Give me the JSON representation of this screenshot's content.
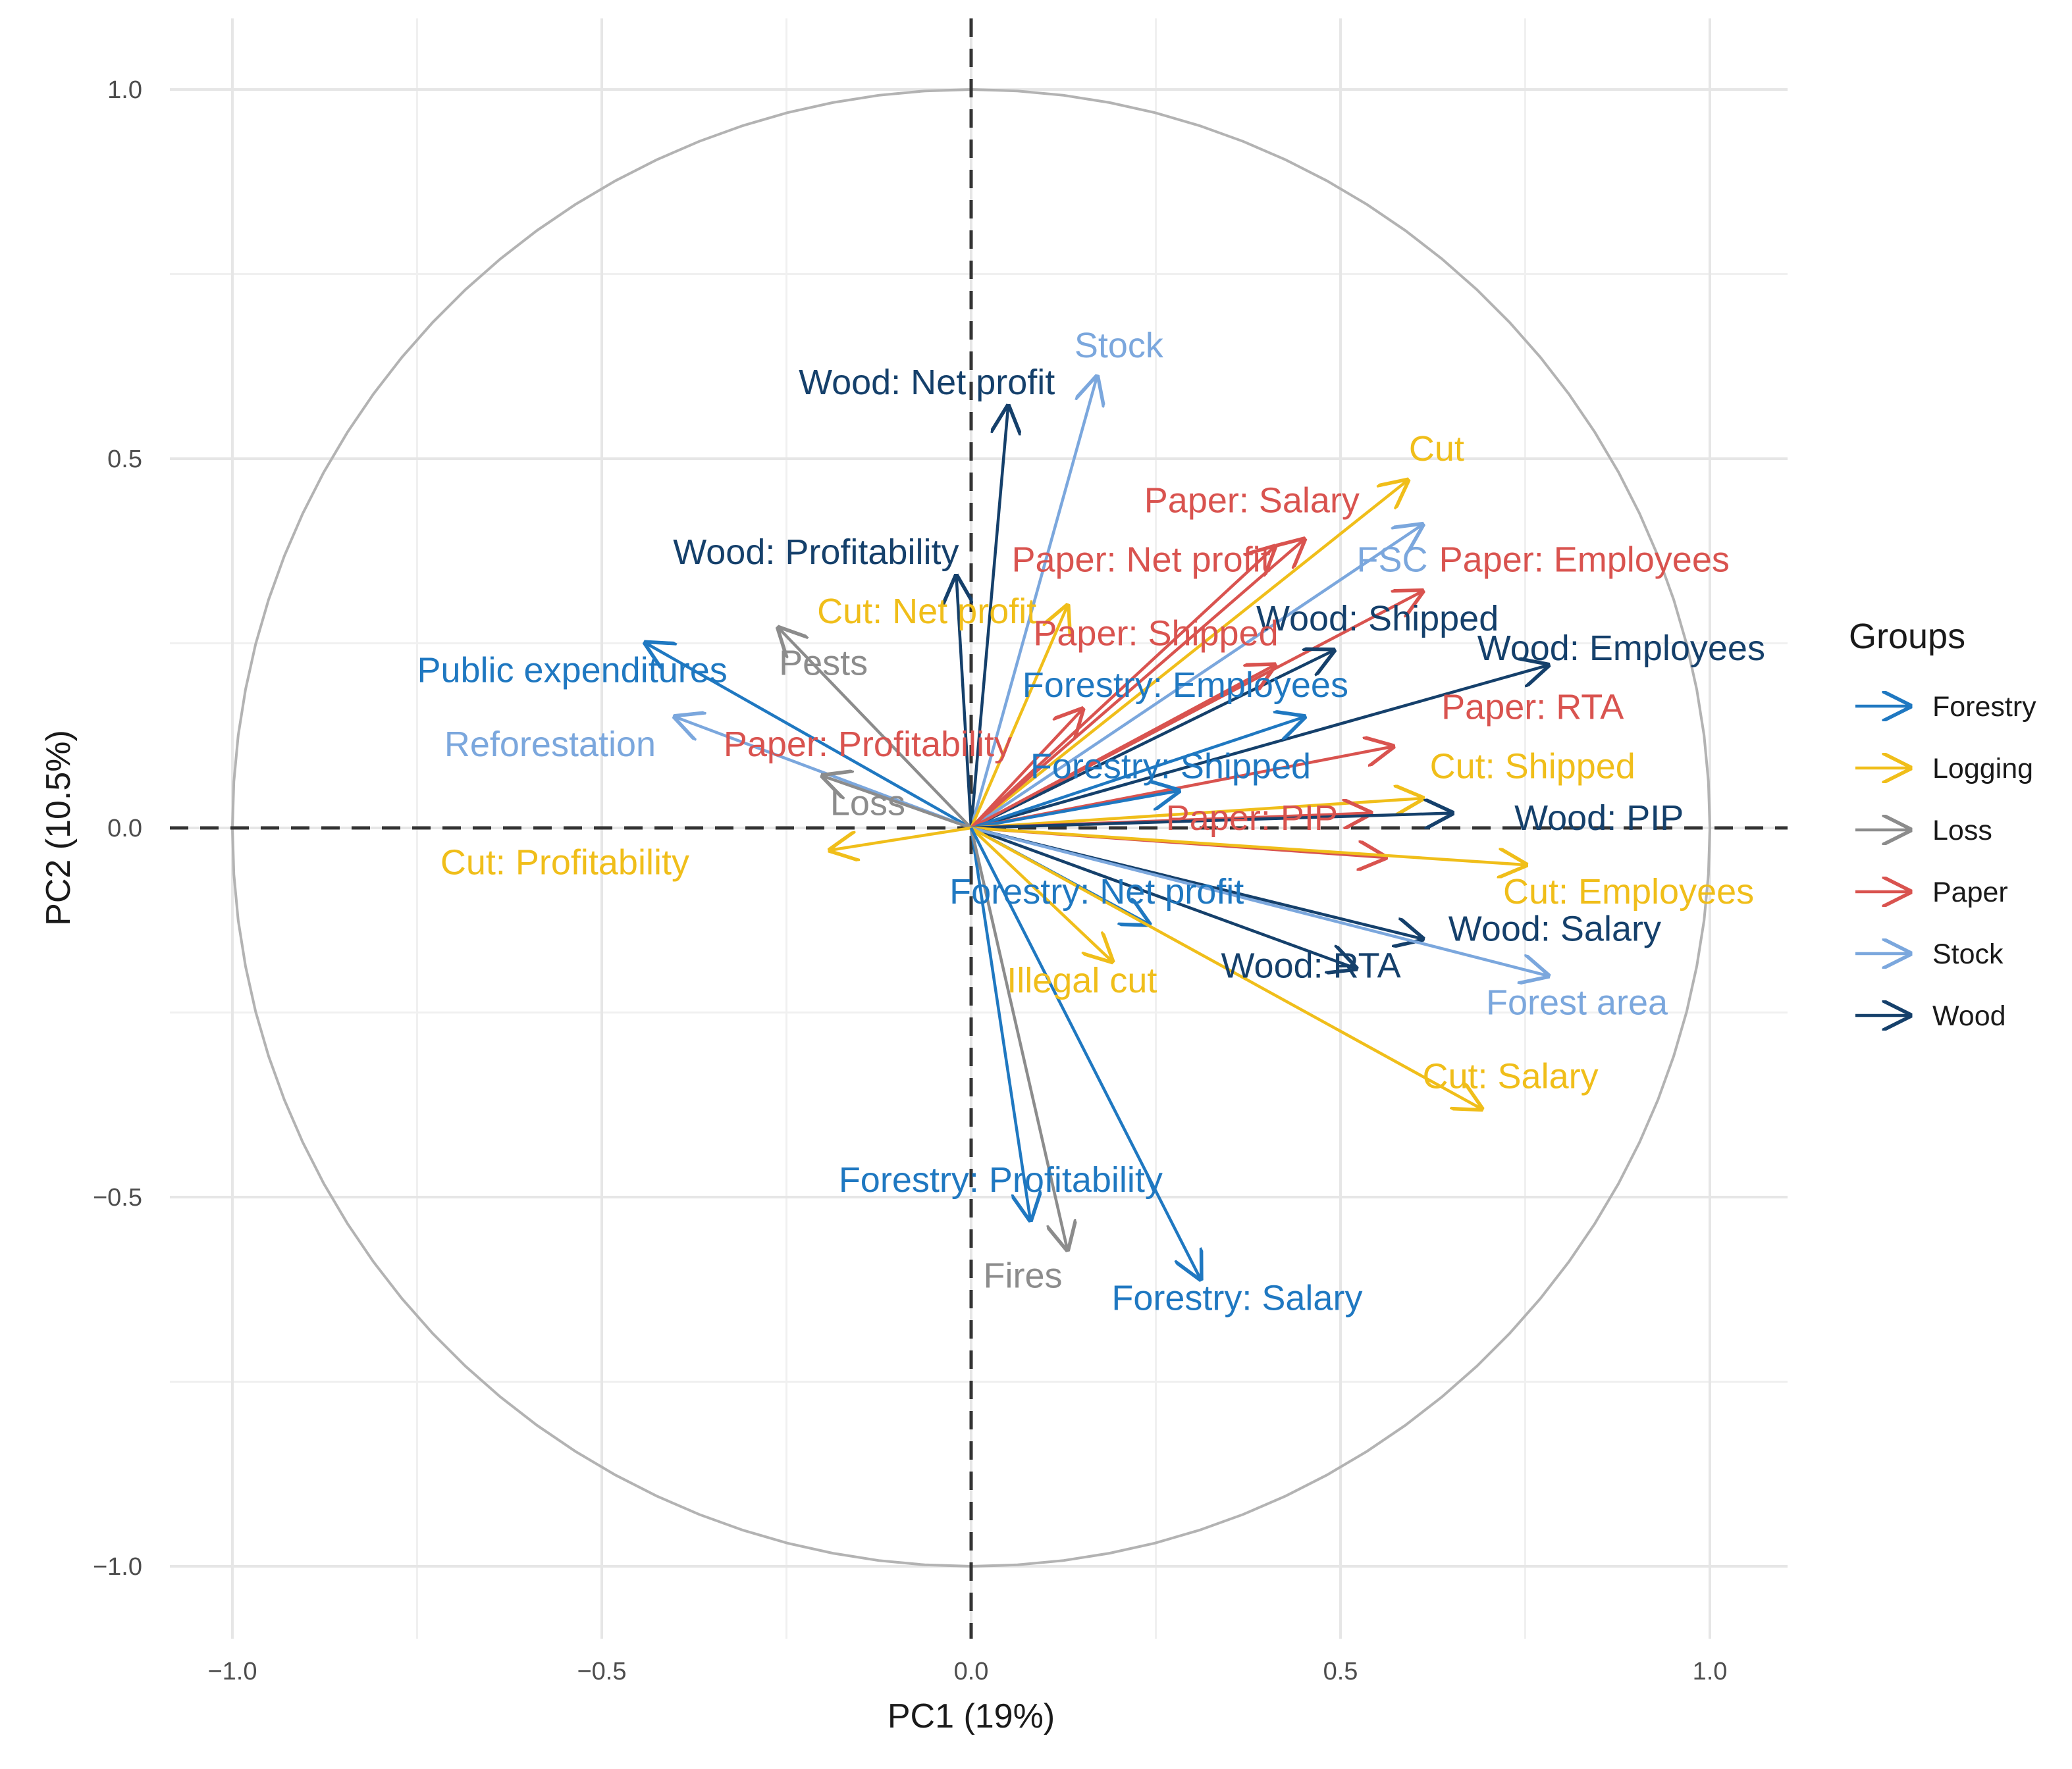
{
  "chart_data": {
    "type": "scatter",
    "subtype": "pca-correlation-circle",
    "title": "",
    "xlabel": "PC1 (19%)",
    "ylabel": "PC2 (10.5%)",
    "xlim": [
      -1.1,
      1.1
    ],
    "ylim": [
      -1.1,
      1.1
    ],
    "xticks": [
      -1.0,
      -0.5,
      0.0,
      0.5,
      1.0
    ],
    "yticks": [
      -1.0,
      -0.5,
      0.0,
      0.5,
      1.0
    ],
    "xtick_labels": [
      "−1.0",
      "−0.5",
      "0.0",
      "0.5",
      "1.0"
    ],
    "ytick_labels": [
      "−1.0",
      "−0.5",
      "0.0",
      "0.5",
      "1.0"
    ],
    "grid": true,
    "unit_circle": true,
    "legend": {
      "title": "Groups",
      "position": "right",
      "entries": [
        "Forestry",
        "Logging",
        "Loss",
        "Paper",
        "Stock",
        "Wood"
      ]
    },
    "group_colors": {
      "Forestry": "#1f78c1",
      "Logging": "#f0be1a",
      "Loss": "#8c8c8c",
      "Paper": "#d9534f",
      "Stock": "#7ba7dd",
      "Wood": "#15406b"
    },
    "series": [
      {
        "name": "Wood: Net profit",
        "group": "Wood",
        "x": 0.05,
        "y": 0.57,
        "label_x": -0.06,
        "label_y": 0.6
      },
      {
        "name": "Stock",
        "group": "Stock",
        "x": 0.17,
        "y": 0.61,
        "label_x": 0.2,
        "label_y": 0.65
      },
      {
        "name": "Cut",
        "group": "Logging",
        "x": 0.59,
        "y": 0.47,
        "label_x": 0.63,
        "label_y": 0.51
      },
      {
        "name": "Paper: Salary",
        "group": "Paper",
        "x": 0.45,
        "y": 0.39,
        "label_x": 0.38,
        "label_y": 0.44
      },
      {
        "name": "FSC",
        "group": "Stock",
        "x": 0.61,
        "y": 0.41,
        "label_x": 0.57,
        "label_y": 0.36
      },
      {
        "name": "Paper: Employees",
        "group": "Paper",
        "x": 0.61,
        "y": 0.32,
        "label_x": 0.83,
        "label_y": 0.36
      },
      {
        "name": "Wood: Profitability",
        "group": "Wood",
        "x": -0.02,
        "y": 0.34,
        "label_x": -0.21,
        "label_y": 0.37
      },
      {
        "name": "Paper: Net profit",
        "group": "Paper",
        "x": 0.41,
        "y": 0.38,
        "label_x": 0.23,
        "label_y": 0.36
      },
      {
        "name": "Cut: Net profit",
        "group": "Logging",
        "x": 0.13,
        "y": 0.3,
        "label_x": -0.06,
        "label_y": 0.29
      },
      {
        "name": "Wood: Shipped",
        "group": "Wood",
        "x": 0.49,
        "y": 0.24,
        "label_x": 0.55,
        "label_y": 0.28
      },
      {
        "name": "Paper: Shipped",
        "group": "Paper",
        "x": 0.41,
        "y": 0.22,
        "label_x": 0.25,
        "label_y": 0.26
      },
      {
        "name": "Wood: Employees",
        "group": "Wood",
        "x": 0.78,
        "y": 0.22,
        "label_x": 0.88,
        "label_y": 0.24
      },
      {
        "name": "Public expenditures",
        "group": "Forestry",
        "x": -0.44,
        "y": 0.25,
        "label_x": -0.54,
        "label_y": 0.21
      },
      {
        "name": "Pests",
        "group": "Loss",
        "x": -0.26,
        "y": 0.27,
        "label_x": -0.2,
        "label_y": 0.22
      },
      {
        "name": "Forestry: Employees",
        "group": "Forestry",
        "x": 0.45,
        "y": 0.15,
        "label_x": 0.29,
        "label_y": 0.19
      },
      {
        "name": "Paper: RTA",
        "group": "Paper",
        "x": 0.57,
        "y": 0.11,
        "label_x": 0.76,
        "label_y": 0.16
      },
      {
        "name": "Reforestation",
        "group": "Stock",
        "x": -0.4,
        "y": 0.15,
        "label_x": -0.57,
        "label_y": 0.11
      },
      {
        "name": "Paper: Profitability",
        "group": "Paper",
        "x": 0.15,
        "y": 0.16,
        "label_x": -0.14,
        "label_y": 0.11
      },
      {
        "name": "Forestry: Shipped",
        "group": "Forestry",
        "x": 0.28,
        "y": 0.05,
        "label_x": 0.27,
        "label_y": 0.08
      },
      {
        "name": "Cut: Shipped",
        "group": "Logging",
        "x": 0.61,
        "y": 0.04,
        "label_x": 0.76,
        "label_y": 0.08
      },
      {
        "name": "Loss",
        "group": "Loss",
        "x": -0.2,
        "y": 0.07,
        "label_x": -0.14,
        "label_y": 0.03
      },
      {
        "name": "Paper: PIP",
        "group": "Paper",
        "x": 0.54,
        "y": 0.02,
        "label_x": 0.38,
        "label_y": 0.01
      },
      {
        "name": "Wood: PIP",
        "group": "Wood",
        "x": 0.65,
        "y": 0.02,
        "label_x": 0.85,
        "label_y": 0.01
      },
      {
        "name": "Paper: Employees (Paper)",
        "group": "Paper",
        "x": 0.56,
        "y": -0.04,
        "label_x": 0,
        "label_y": 0,
        "hidden_label": true
      },
      {
        "name": "Cut: Profitability",
        "group": "Logging",
        "x": -0.19,
        "y": -0.03,
        "label_x": -0.55,
        "label_y": -0.05
      },
      {
        "name": "Cut: Employees",
        "group": "Logging",
        "x": 0.75,
        "y": -0.05,
        "label_x": 0.89,
        "label_y": -0.09
      },
      {
        "name": "Forestry: Net profit",
        "group": "Forestry",
        "x": 0.24,
        "y": -0.13,
        "label_x": 0.17,
        "label_y": -0.09
      },
      {
        "name": "Wood: Salary",
        "group": "Wood",
        "x": 0.61,
        "y": -0.15,
        "label_x": 0.79,
        "label_y": -0.14
      },
      {
        "name": "Wood: RTA",
        "group": "Wood",
        "x": 0.52,
        "y": -0.19,
        "label_x": 0.46,
        "label_y": -0.19
      },
      {
        "name": "Illegal cut",
        "group": "Logging",
        "x": 0.19,
        "y": -0.18,
        "label_x": 0.15,
        "label_y": -0.21
      },
      {
        "name": "Forest area",
        "group": "Stock",
        "x": 0.78,
        "y": -0.2,
        "label_x": 0.82,
        "label_y": -0.24
      },
      {
        "name": "Cut: Salary",
        "group": "Logging",
        "x": 0.69,
        "y": -0.38,
        "label_x": 0.73,
        "label_y": -0.34
      },
      {
        "name": "Forestry: Profitability",
        "group": "Forestry",
        "x": 0.08,
        "y": -0.53,
        "label_x": 0.04,
        "label_y": -0.48
      },
      {
        "name": "Fires",
        "group": "Loss",
        "x": 0.13,
        "y": -0.57,
        "label_x": 0.07,
        "label_y": -0.61
      },
      {
        "name": "Forestry: Salary",
        "group": "Forestry",
        "x": 0.31,
        "y": -0.61,
        "label_x": 0.36,
        "label_y": -0.64
      }
    ]
  }
}
